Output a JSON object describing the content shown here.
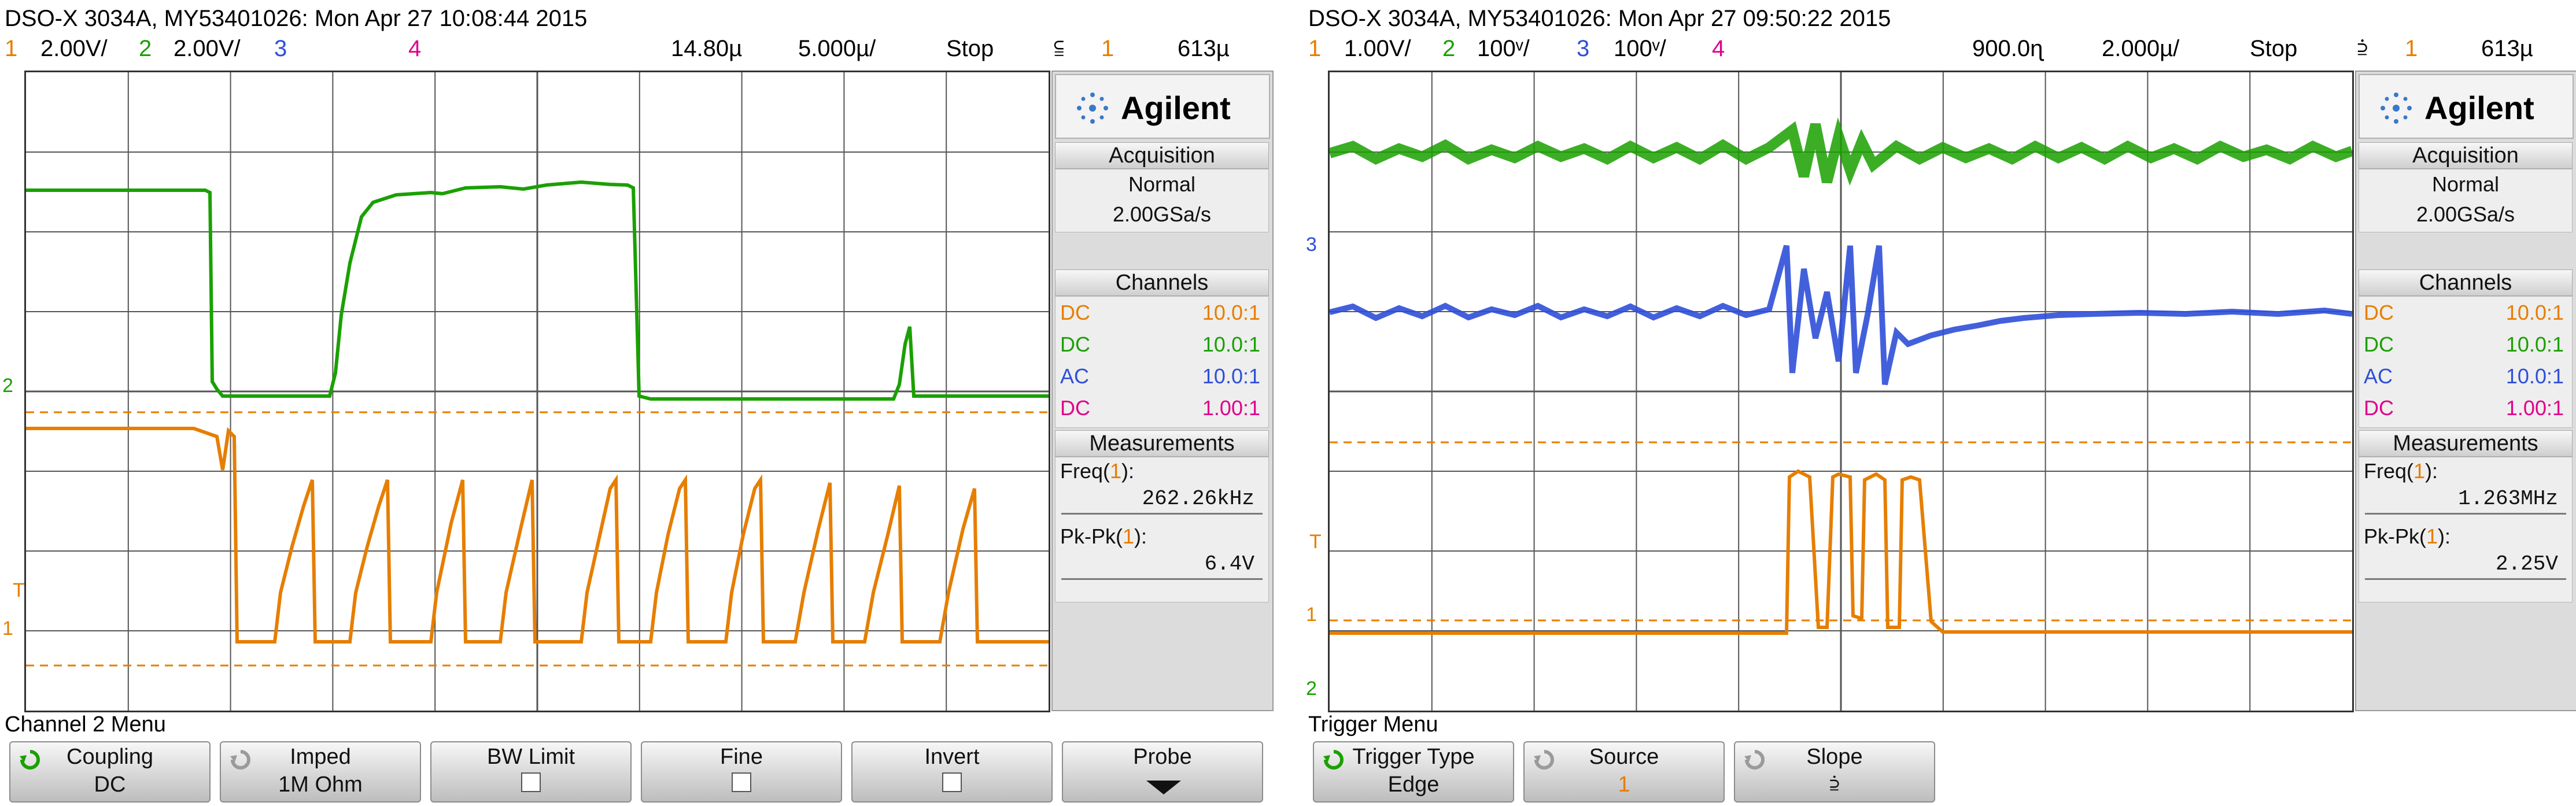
{
  "left": {
    "title": "DSO-X 3034A, MY53401026: Mon Apr 27 10:08:44 2015",
    "ch1_num": "1",
    "ch1_scale": "2.00V/",
    "ch2_num": "2",
    "ch2_scale": "2.00V/",
    "ch3_num": "3",
    "ch4_num": "4",
    "time_offset": "14.80µ",
    "time_scale": "5.000µ/",
    "run_state": "Stop",
    "trigger_slope_glyph": "⫅",
    "trigger_source": "1",
    "trigger_level": "613µ",
    "markers": {
      "ch2": "2",
      "ch1": "1",
      "trigger": "T"
    },
    "brand": "Agilent",
    "acquisition": {
      "header": "Acquisition",
      "mode": "Normal",
      "rate": "2.00GSa/s"
    },
    "channels": {
      "header": "Channels",
      "rows": [
        {
          "coupling": "DC",
          "ratio": "10.0:1",
          "color": "#e67e00"
        },
        {
          "coupling": "DC",
          "ratio": "10.0:1",
          "color": "#1aa000"
        },
        {
          "coupling": "AC",
          "ratio": "10.0:1",
          "color": "#2f4fd8"
        },
        {
          "coupling": "DC",
          "ratio": "1.00:1",
          "color": "#e0008a"
        }
      ]
    },
    "measurements": {
      "header": "Measurements",
      "freq_label": "Freq(",
      "freq_ch": "1",
      "freq_close": "):",
      "freq_value": "262.26kHz",
      "pkpk_label": "Pk-Pk(",
      "pkpk_ch": "1",
      "pkpk_close": "):",
      "pkpk_value": "6.4V"
    },
    "menu_title": "Channel 2 Menu",
    "softkeys": [
      {
        "label": "Coupling",
        "value": "DC"
      },
      {
        "label": "Imped",
        "value": "1M Ohm"
      },
      {
        "label": "BW Limit",
        "value": ""
      },
      {
        "label": "Fine",
        "value": ""
      },
      {
        "label": "Invert",
        "value": ""
      },
      {
        "label": "Probe",
        "value": ""
      }
    ]
  },
  "right": {
    "title": "DSO-X 3034A, MY53401026: Mon Apr 27 09:50:22 2015",
    "ch1_num": "1",
    "ch1_scale": "1.00V/",
    "ch2_num": "2",
    "ch2_scale": "100ᵛ/",
    "ch3_num": "3",
    "ch3_scale": "100ᵛ/",
    "ch4_num": "4",
    "time_offset": "900.0ɳ",
    "time_scale": "2.000µ/",
    "run_state": "Stop",
    "trigger_slope_glyph": "⫄",
    "trigger_source": "1",
    "trigger_level": "613µ",
    "markers": {
      "ch3": "3",
      "ch1": "1",
      "ch2": "2",
      "trigger": "T"
    },
    "brand": "Agilent",
    "acquisition": {
      "header": "Acquisition",
      "mode": "Normal",
      "rate": "2.00GSa/s"
    },
    "channels": {
      "header": "Channels",
      "rows": [
        {
          "coupling": "DC",
          "ratio": "10.0:1",
          "color": "#e67e00"
        },
        {
          "coupling": "DC",
          "ratio": "10.0:1",
          "color": "#1aa000"
        },
        {
          "coupling": "AC",
          "ratio": "10.0:1",
          "color": "#2f4fd8"
        },
        {
          "coupling": "DC",
          "ratio": "1.00:1",
          "color": "#e0008a"
        }
      ]
    },
    "measurements": {
      "header": "Measurements",
      "freq_label": "Freq(",
      "freq_ch": "1",
      "freq_close": "):",
      "freq_value": "1.263MHz",
      "pkpk_label": "Pk-Pk(",
      "pkpk_ch": "1",
      "pkpk_close": "):",
      "pkpk_value": "2.25V"
    },
    "menu_title": "Trigger Menu",
    "softkeys": [
      {
        "label": "Trigger Type",
        "value": "Edge"
      },
      {
        "label": "Source",
        "value": "1"
      },
      {
        "label": "Slope",
        "value": "⫄"
      }
    ]
  },
  "colors": {
    "ch1": "#e67e00",
    "ch2": "#1aa000",
    "ch3": "#2f4fd8",
    "ch4": "#e0008a",
    "grid": "#444444",
    "panel": "#dcdcdc"
  }
}
